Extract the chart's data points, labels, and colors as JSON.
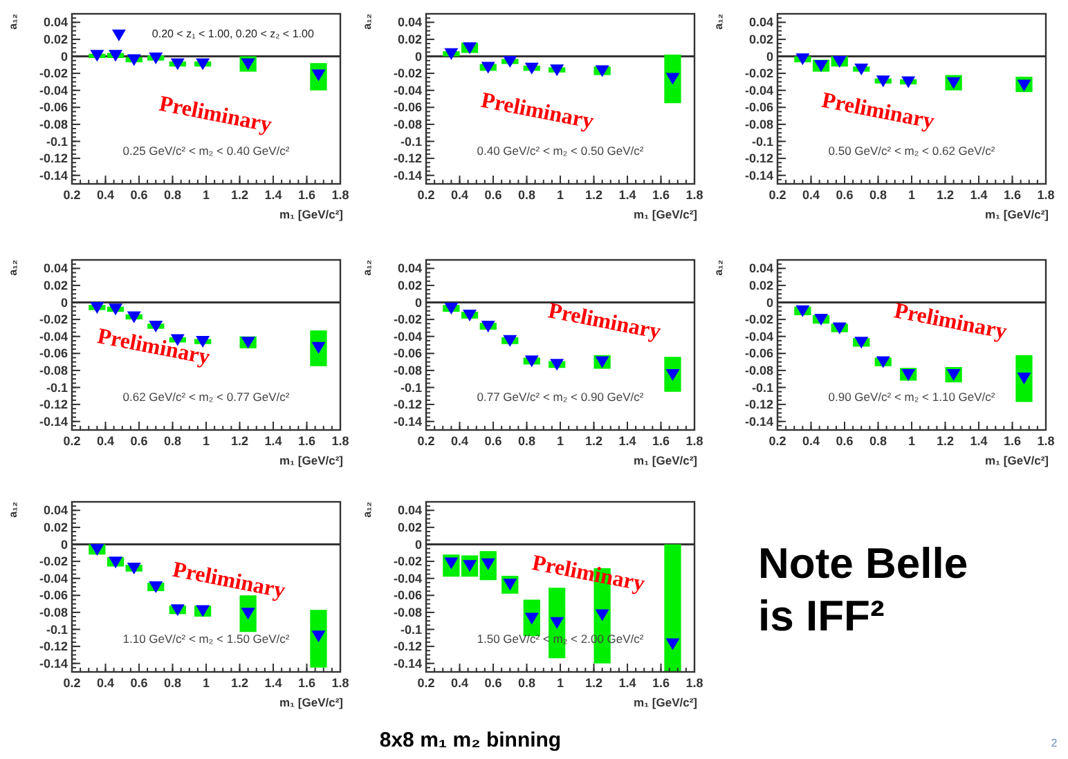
{
  "chart_data": [
    {
      "type": "scatter",
      "xlabel": "m₁ [GeV/c²]",
      "ylabel": "a₁₂",
      "xlim": [
        0.2,
        1.8
      ],
      "ylim": [
        -0.15,
        0.05
      ],
      "xticks": [
        0.2,
        0.4,
        0.6,
        0.8,
        1,
        1.2,
        1.4,
        1.6,
        1.8
      ],
      "yticks": [
        0.04,
        0.02,
        0,
        -0.02,
        -0.04,
        -0.06,
        -0.08,
        -0.1,
        -0.12,
        -0.14
      ],
      "grid": false,
      "marker": "triangle",
      "ref_lines": [
        {
          "axis": "y",
          "value": 0
        }
      ],
      "annotations": [
        "Preliminary",
        "0.25 GeV/c² < m₂ < 0.40 GeV/c²",
        "0.20 < z₁ < 1.00, 0.20 < z₂ < 1.00"
      ],
      "x": [
        0.35,
        0.46,
        0.57,
        0.7,
        0.83,
        0.98,
        1.25,
        1.67
      ],
      "series": [
        {
          "color": "#0000ff",
          "values": [
            0.001,
            0.001,
            -0.004,
            -0.002,
            -0.009,
            -0.009,
            -0.009,
            -0.022
          ],
          "errors": [
            [
              -0.002,
              0.003
            ],
            [
              -0.002,
              0.004
            ],
            [
              -0.007,
              -0.001
            ],
            [
              -0.005,
              0.001
            ],
            [
              -0.012,
              -0.006
            ],
            [
              -0.012,
              -0.006
            ],
            [
              -0.018,
              0.0
            ],
            [
              -0.04,
              -0.008
            ]
          ]
        },
        {
          "color": "#0000ff",
          "x": [
            0.48
          ],
          "values": [
            0.025
          ]
        }
      ]
    },
    {
      "type": "scatter",
      "xlabel": "m₁ [GeV/c²]",
      "ylabel": "a₁₂",
      "xlim": [
        0.2,
        1.8
      ],
      "ylim": [
        -0.15,
        0.05
      ],
      "xticks": [
        0.2,
        0.4,
        0.6,
        0.8,
        1,
        1.2,
        1.4,
        1.6,
        1.8
      ],
      "yticks": [
        0.04,
        0.02,
        0,
        -0.02,
        -0.04,
        -0.06,
        -0.08,
        -0.1,
        -0.12,
        -0.14
      ],
      "grid": false,
      "marker": "triangle",
      "ref_lines": [
        {
          "axis": "y",
          "value": 0
        }
      ],
      "annotations": [
        "Preliminary",
        "0.40 GeV/c² < m₂ < 0.50 GeV/c²"
      ],
      "x": [
        0.35,
        0.46,
        0.57,
        0.7,
        0.83,
        0.98,
        1.25,
        1.67
      ],
      "series": [
        {
          "color": "#0000ff",
          "values": [
            0.003,
            0.01,
            -0.013,
            -0.006,
            -0.014,
            -0.016,
            -0.017,
            -0.026
          ],
          "errors": [
            [
              0.0,
              0.006
            ],
            [
              0.004,
              0.016
            ],
            [
              -0.017,
              -0.009
            ],
            [
              -0.009,
              -0.003
            ],
            [
              -0.017,
              -0.011
            ],
            [
              -0.019,
              -0.013
            ],
            [
              -0.022,
              -0.012
            ],
            [
              -0.055,
              0.002
            ]
          ]
        }
      ]
    },
    {
      "type": "scatter",
      "xlabel": "m₁ [GeV/c²]",
      "ylabel": "a₁₂",
      "xlim": [
        0.2,
        1.8
      ],
      "ylim": [
        -0.15,
        0.05
      ],
      "xticks": [
        0.2,
        0.4,
        0.6,
        0.8,
        1,
        1.2,
        1.4,
        1.6,
        1.8
      ],
      "yticks": [
        0.04,
        0.02,
        0,
        -0.02,
        -0.04,
        -0.06,
        -0.08,
        -0.1,
        -0.12,
        -0.14
      ],
      "grid": false,
      "marker": "triangle",
      "ref_lines": [
        {
          "axis": "y",
          "value": 0
        }
      ],
      "annotations": [
        "Preliminary",
        "0.50 GeV/c² < m₂ < 0.62 GeV/c²"
      ],
      "x": [
        0.35,
        0.46,
        0.57,
        0.7,
        0.83,
        0.98,
        1.25,
        1.67
      ],
      "series": [
        {
          "color": "#0000ff",
          "values": [
            -0.003,
            -0.011,
            -0.006,
            -0.015,
            -0.029,
            -0.03,
            -0.031,
            -0.034
          ],
          "errors": [
            [
              -0.007,
              0.0
            ],
            [
              -0.018,
              -0.004
            ],
            [
              -0.012,
              0.0
            ],
            [
              -0.018,
              -0.012
            ],
            [
              -0.032,
              -0.026
            ],
            [
              -0.033,
              -0.027
            ],
            [
              -0.04,
              -0.022
            ],
            [
              -0.042,
              -0.024
            ]
          ]
        }
      ]
    },
    {
      "type": "scatter",
      "xlabel": "m₁ [GeV/c²]",
      "ylabel": "a₁₂",
      "xlim": [
        0.2,
        1.8
      ],
      "ylim": [
        -0.15,
        0.05
      ],
      "xticks": [
        0.2,
        0.4,
        0.6,
        0.8,
        1,
        1.2,
        1.4,
        1.6,
        1.8
      ],
      "yticks": [
        0.04,
        0.02,
        0,
        -0.02,
        -0.04,
        -0.06,
        -0.08,
        -0.1,
        -0.12,
        -0.14
      ],
      "grid": false,
      "marker": "triangle",
      "ref_lines": [
        {
          "axis": "y",
          "value": 0
        }
      ],
      "annotations": [
        "Preliminary",
        "0.62 GeV/c² < m₂ < 0.77 GeV/c²"
      ],
      "x": [
        0.35,
        0.46,
        0.57,
        0.7,
        0.83,
        0.98,
        1.25,
        1.67
      ],
      "series": [
        {
          "color": "#0000ff",
          "values": [
            -0.006,
            -0.008,
            -0.017,
            -0.028,
            -0.044,
            -0.046,
            -0.047,
            -0.053
          ],
          "errors": [
            [
              -0.009,
              -0.003
            ],
            [
              -0.011,
              -0.005
            ],
            [
              -0.02,
              -0.014
            ],
            [
              -0.031,
              -0.025
            ],
            [
              -0.047,
              -0.041
            ],
            [
              -0.049,
              -0.043
            ],
            [
              -0.054,
              -0.04
            ],
            [
              -0.075,
              -0.033
            ]
          ]
        }
      ]
    },
    {
      "type": "scatter",
      "xlabel": "m₁ [GeV/c²]",
      "ylabel": "a₁₂",
      "xlim": [
        0.2,
        1.8
      ],
      "ylim": [
        -0.15,
        0.05
      ],
      "xticks": [
        0.2,
        0.4,
        0.6,
        0.8,
        1,
        1.2,
        1.4,
        1.6,
        1.8
      ],
      "yticks": [
        0.04,
        0.02,
        0,
        -0.02,
        -0.04,
        -0.06,
        -0.08,
        -0.1,
        -0.12,
        -0.14
      ],
      "grid": false,
      "marker": "triangle",
      "ref_lines": [
        {
          "axis": "y",
          "value": 0
        }
      ],
      "annotations": [
        "Preliminary",
        "0.77 GeV/c² < m₂ < 0.90 GeV/c²"
      ],
      "x": [
        0.35,
        0.46,
        0.57,
        0.7,
        0.83,
        0.98,
        1.25,
        1.67
      ],
      "series": [
        {
          "color": "#0000ff",
          "values": [
            -0.007,
            -0.015,
            -0.028,
            -0.045,
            -0.069,
            -0.073,
            -0.07,
            -0.085
          ],
          "errors": [
            [
              -0.011,
              -0.003
            ],
            [
              -0.019,
              -0.011
            ],
            [
              -0.032,
              -0.024
            ],
            [
              -0.049,
              -0.041
            ],
            [
              -0.073,
              -0.065
            ],
            [
              -0.077,
              -0.069
            ],
            [
              -0.078,
              -0.062
            ],
            [
              -0.105,
              -0.064
            ]
          ]
        }
      ]
    },
    {
      "type": "scatter",
      "xlabel": "m₁ [GeV/c²]",
      "ylabel": "a₁₂",
      "xlim": [
        0.2,
        1.8
      ],
      "ylim": [
        -0.15,
        0.05
      ],
      "xticks": [
        0.2,
        0.4,
        0.6,
        0.8,
        1,
        1.2,
        1.4,
        1.6,
        1.8
      ],
      "yticks": [
        0.04,
        0.02,
        0,
        -0.02,
        -0.04,
        -0.06,
        -0.08,
        -0.1,
        -0.12,
        -0.14
      ],
      "grid": false,
      "marker": "triangle",
      "ref_lines": [
        {
          "axis": "y",
          "value": 0
        }
      ],
      "annotations": [
        "Preliminary",
        "0.90 GeV/c² < m₂ < 1.10 GeV/c²"
      ],
      "x": [
        0.35,
        0.46,
        0.57,
        0.7,
        0.83,
        0.98,
        1.25,
        1.67
      ],
      "series": [
        {
          "color": "#0000ff",
          "values": [
            -0.01,
            -0.02,
            -0.03,
            -0.047,
            -0.07,
            -0.085,
            -0.085,
            -0.089
          ],
          "errors": [
            [
              -0.015,
              -0.005
            ],
            [
              -0.025,
              -0.015
            ],
            [
              -0.035,
              -0.025
            ],
            [
              -0.052,
              -0.042
            ],
            [
              -0.075,
              -0.065
            ],
            [
              -0.092,
              -0.077
            ],
            [
              -0.094,
              -0.076
            ],
            [
              -0.117,
              -0.062
            ]
          ]
        }
      ]
    },
    {
      "type": "scatter",
      "xlabel": "m₁ [GeV/c²]",
      "ylabel": "a₁₂",
      "xlim": [
        0.2,
        1.8
      ],
      "ylim": [
        -0.15,
        0.05
      ],
      "xticks": [
        0.2,
        0.4,
        0.6,
        0.8,
        1,
        1.2,
        1.4,
        1.6,
        1.8
      ],
      "yticks": [
        0.04,
        0.02,
        0,
        -0.02,
        -0.04,
        -0.06,
        -0.08,
        -0.1,
        -0.12,
        -0.14
      ],
      "grid": false,
      "marker": "triangle",
      "ref_lines": [
        {
          "axis": "y",
          "value": 0
        }
      ],
      "annotations": [
        "Preliminary",
        "1.10 GeV/c² < m₂ < 1.50 GeV/c²"
      ],
      "x": [
        0.35,
        0.46,
        0.57,
        0.7,
        0.83,
        0.98,
        1.25,
        1.67
      ],
      "series": [
        {
          "color": "#0000ff",
          "values": [
            -0.006,
            -0.021,
            -0.028,
            -0.05,
            -0.077,
            -0.078,
            -0.081,
            -0.108
          ],
          "errors": [
            [
              -0.012,
              0.0
            ],
            [
              -0.026,
              -0.015
            ],
            [
              -0.032,
              -0.024
            ],
            [
              -0.055,
              -0.045
            ],
            [
              -0.082,
              -0.072
            ],
            [
              -0.085,
              -0.072
            ],
            [
              -0.103,
              -0.06
            ],
            [
              -0.145,
              -0.077
            ]
          ]
        }
      ]
    },
    {
      "type": "scatter",
      "xlabel": "m₁ [GeV/c²]",
      "ylabel": "a₁₂",
      "xlim": [
        0.2,
        1.8
      ],
      "ylim": [
        -0.15,
        0.05
      ],
      "xticks": [
        0.2,
        0.4,
        0.6,
        0.8,
        1,
        1.2,
        1.4,
        1.6,
        1.8
      ],
      "yticks": [
        0.04,
        0.02,
        0,
        -0.02,
        -0.04,
        -0.06,
        -0.08,
        -0.1,
        -0.12,
        -0.14
      ],
      "grid": false,
      "marker": "triangle",
      "ref_lines": [
        {
          "axis": "y",
          "value": 0
        }
      ],
      "annotations": [
        "Preliminary",
        "1.50 GeV/c² < m₂ < 2.00 GeV/c²"
      ],
      "x": [
        0.35,
        0.46,
        0.57,
        0.7,
        0.83,
        0.98,
        1.25,
        1.67
      ],
      "series": [
        {
          "color": "#0000ff",
          "values": [
            -0.022,
            -0.025,
            -0.023,
            -0.047,
            -0.087,
            -0.092,
            -0.083,
            -0.117
          ],
          "errors": [
            [
              -0.038,
              -0.012
            ],
            [
              -0.038,
              -0.013
            ],
            [
              -0.042,
              -0.008
            ],
            [
              -0.058,
              -0.037
            ],
            [
              -0.108,
              -0.065
            ],
            [
              -0.134,
              -0.051
            ],
            [
              -0.14,
              -0.028
            ],
            [
              -0.15,
              0.0
            ]
          ]
        }
      ]
    },
    {
      "type": "other",
      "annotations": [
        "Note Belle is IFF²",
        "8x8 m₁ m₂ binning",
        "2"
      ]
    }
  ]
}
